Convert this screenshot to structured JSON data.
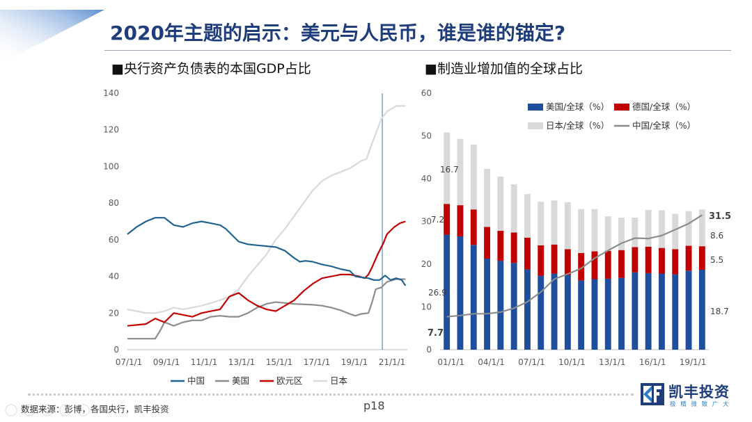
{
  "title": "2020年主题的启示：美元与人民币，谁是谁的锚定?",
  "subtitles": {
    "left": "■央行资产负债表的本国GDP占比",
    "right": "■制造业增加值的全球占比"
  },
  "footer": {
    "source": "数据来源：彭博，各国央行，凯丰投资",
    "page": "p18",
    "logo_name": "凯丰投资",
    "logo_tagline": "极 精 微 致 广 大"
  },
  "colors": {
    "china": "#1f6391",
    "us": "#8c8c8c",
    "euro": "#c00000",
    "japan": "#d9d9d9",
    "bar_us": "#1f4e9c",
    "bar_de": "#c00000",
    "bar_jp": "#d9d9d9",
    "bar_cn": "#8c8c8c",
    "vline": "#2e75b6"
  },
  "chart_data": [
    {
      "type": "line",
      "title": "央行资产负债表的本国GDP占比",
      "x_ticks": [
        "07/1/1",
        "09/1/1",
        "11/1/1",
        "13/1/1",
        "15/1/1",
        "17/1/1",
        "19/1/1",
        "21/1/1"
      ],
      "x_range": [
        2007.0,
        2022.1
      ],
      "ylim": [
        0,
        140
      ],
      "y_ticks": [
        0,
        20,
        40,
        60,
        80,
        100,
        120,
        140
      ],
      "grid": false,
      "legend_position": "bottom",
      "vertical_marker_x": 2020.75,
      "series": [
        {
          "name": "中国",
          "color_key": "china",
          "points": [
            [
              2007.0,
              63
            ],
            [
              2007.5,
              67
            ],
            [
              2008.0,
              70
            ],
            [
              2008.5,
              72
            ],
            [
              2009.0,
              72
            ],
            [
              2009.5,
              68
            ],
            [
              2010.0,
              67
            ],
            [
              2010.5,
              69
            ],
            [
              2011.0,
              70
            ],
            [
              2011.5,
              69
            ],
            [
              2012.0,
              68
            ],
            [
              2012.3,
              66
            ],
            [
              2012.6,
              63
            ],
            [
              2013.0,
              59
            ],
            [
              2013.5,
              57.5
            ],
            [
              2014.0,
              57
            ],
            [
              2014.5,
              56.5
            ],
            [
              2015.0,
              56
            ],
            [
              2015.5,
              54
            ],
            [
              2016.0,
              50
            ],
            [
              2016.3,
              48
            ],
            [
              2016.6,
              48.5
            ],
            [
              2017.0,
              48
            ],
            [
              2017.5,
              46.5
            ],
            [
              2018.0,
              45.5
            ],
            [
              2018.5,
              44
            ],
            [
              2019.0,
              43
            ],
            [
              2019.3,
              40
            ],
            [
              2019.6,
              39.5
            ],
            [
              2020.0,
              39
            ],
            [
              2020.3,
              38
            ],
            [
              2020.6,
              38
            ],
            [
              2020.9,
              40.5
            ],
            [
              2021.2,
              38
            ],
            [
              2021.5,
              39
            ],
            [
              2021.8,
              38
            ],
            [
              2022.0,
              35
            ]
          ]
        },
        {
          "name": "美国",
          "color_key": "us",
          "points": [
            [
              2007.0,
              6
            ],
            [
              2008.0,
              6
            ],
            [
              2008.5,
              6
            ],
            [
              2008.8,
              11
            ],
            [
              2009.0,
              15
            ],
            [
              2009.5,
              13
            ],
            [
              2010.0,
              15
            ],
            [
              2010.5,
              16
            ],
            [
              2011.0,
              16
            ],
            [
              2011.5,
              18
            ],
            [
              2012.0,
              18.5
            ],
            [
              2012.5,
              18
            ],
            [
              2013.0,
              18
            ],
            [
              2013.5,
              20
            ],
            [
              2014.0,
              23
            ],
            [
              2014.5,
              25
            ],
            [
              2015.0,
              26
            ],
            [
              2015.5,
              25.5
            ],
            [
              2016.0,
              25
            ],
            [
              2017.0,
              24.5
            ],
            [
              2017.5,
              24
            ],
            [
              2018.0,
              23
            ],
            [
              2018.5,
              21.5
            ],
            [
              2019.0,
              19.5
            ],
            [
              2019.3,
              18.5
            ],
            [
              2019.6,
              19.5
            ],
            [
              2020.0,
              20
            ],
            [
              2020.2,
              26
            ],
            [
              2020.4,
              33
            ],
            [
              2020.7,
              34
            ],
            [
              2021.0,
              37
            ],
            [
              2021.5,
              38.5
            ],
            [
              2022.0,
              38.5
            ]
          ]
        },
        {
          "name": "欧元区",
          "color_key": "euro",
          "points": [
            [
              2007.0,
              13
            ],
            [
              2007.5,
              13.5
            ],
            [
              2008.0,
              14
            ],
            [
              2008.5,
              17
            ],
            [
              2009.0,
              15
            ],
            [
              2009.5,
              20
            ],
            [
              2010.0,
              19
            ],
            [
              2010.5,
              18
            ],
            [
              2011.0,
              20
            ],
            [
              2011.5,
              21
            ],
            [
              2012.0,
              22
            ],
            [
              2012.5,
              29
            ],
            [
              2013.0,
              31
            ],
            [
              2013.5,
              27
            ],
            [
              2014.0,
              24
            ],
            [
              2014.5,
              22
            ],
            [
              2015.0,
              21
            ],
            [
              2015.5,
              24
            ],
            [
              2016.0,
              27
            ],
            [
              2016.5,
              32
            ],
            [
              2017.0,
              36
            ],
            [
              2017.5,
              39
            ],
            [
              2018.0,
              40
            ],
            [
              2018.5,
              41
            ],
            [
              2019.0,
              41
            ],
            [
              2019.5,
              40
            ],
            [
              2019.8,
              39
            ],
            [
              2020.0,
              41
            ],
            [
              2020.2,
              45
            ],
            [
              2020.5,
              52
            ],
            [
              2020.8,
              58
            ],
            [
              2021.0,
              63
            ],
            [
              2021.4,
              67
            ],
            [
              2021.7,
              69
            ],
            [
              2022.0,
              70
            ]
          ]
        },
        {
          "name": "日本",
          "color_key": "japan",
          "points": [
            [
              2007.0,
              22
            ],
            [
              2007.5,
              21
            ],
            [
              2008.0,
              20
            ],
            [
              2008.5,
              20
            ],
            [
              2009.0,
              21
            ],
            [
              2009.5,
              23
            ],
            [
              2010.0,
              22
            ],
            [
              2010.5,
              23
            ],
            [
              2011.0,
              24
            ],
            [
              2011.5,
              25.5
            ],
            [
              2012.0,
              27
            ],
            [
              2012.5,
              29
            ],
            [
              2013.0,
              33
            ],
            [
              2013.5,
              40
            ],
            [
              2014.0,
              46
            ],
            [
              2014.5,
              52
            ],
            [
              2015.0,
              60
            ],
            [
              2015.5,
              66
            ],
            [
              2016.0,
              73
            ],
            [
              2016.5,
              80
            ],
            [
              2017.0,
              87
            ],
            [
              2017.5,
              92
            ],
            [
              2018.0,
              95
            ],
            [
              2018.5,
              97
            ],
            [
              2019.0,
              99
            ],
            [
              2019.3,
              101
            ],
            [
              2019.6,
              103
            ],
            [
              2019.9,
              104
            ],
            [
              2020.1,
              110
            ],
            [
              2020.4,
              118
            ],
            [
              2020.7,
              126
            ],
            [
              2021.0,
              130
            ],
            [
              2021.5,
              133
            ],
            [
              2022.0,
              133
            ]
          ]
        }
      ]
    },
    {
      "type": "bar",
      "title": "制造业增加值的全球占比",
      "stacked": true,
      "categories": [
        "01/1/1",
        "02/1/1",
        "03/1/1",
        "04/1/1",
        "05/1/1",
        "06/1/1",
        "07/1/1",
        "08/1/1",
        "09/1/1",
        "10/1/1",
        "11/1/1",
        "12/1/1",
        "13/1/1",
        "14/1/1",
        "15/1/1",
        "16/1/1",
        "17/1/1",
        "18/1/1",
        "19/1/1",
        "20/1/1"
      ],
      "x_tick_labels": [
        "01/1/1",
        "04/1/1",
        "07/1/1",
        "10/1/1",
        "13/1/1",
        "16/1/1",
        "19/1/1"
      ],
      "ylim": [
        0,
        60
      ],
      "y_ticks": [
        0,
        10,
        20,
        30,
        40,
        50,
        60
      ],
      "legend_position": "top",
      "series": [
        {
          "name": "美国/全球（%）",
          "kind": "bar",
          "color_key": "bar_us",
          "values": [
            26.9,
            26.5,
            24.5,
            21.3,
            20.8,
            20.3,
            18.8,
            17.3,
            17.8,
            17.4,
            16.2,
            16.5,
            16.6,
            16.8,
            18.1,
            17.9,
            17.8,
            17.6,
            18.5,
            18.7
          ]
        },
        {
          "name": "德国/全球（%）",
          "kind": "bar",
          "color_key": "bar_de",
          "values": [
            7.2,
            7.3,
            8.3,
            7.4,
            7.0,
            7.1,
            7.4,
            7.1,
            6.8,
            6.1,
            6.4,
            6.5,
            6.5,
            6.5,
            5.9,
            6.2,
            6.0,
            5.9,
            5.8,
            5.5
          ]
        },
        {
          "name": "日本/全球（%）",
          "kind": "bar",
          "color_key": "bar_jp",
          "values": [
            16.7,
            15.5,
            15.2,
            13.6,
            12.7,
            11.3,
            10.2,
            10.2,
            10.3,
            11.0,
            10.3,
            9.9,
            8.1,
            7.6,
            6.9,
            8.6,
            8.8,
            8.3,
            8.1,
            8.6
          ]
        },
        {
          "name": "中国/全球（%）",
          "kind": "line",
          "color_key": "bar_cn",
          "values": [
            7.7,
            8.0,
            8.4,
            8.4,
            8.8,
            9.7,
            11.2,
            13.5,
            16.5,
            17.7,
            19.0,
            21.4,
            23.2,
            24.9,
            26.1,
            26.0,
            26.7,
            28.1,
            29.5,
            31.5
          ]
        }
      ],
      "data_labels": {
        "bar_top_left": "16.7",
        "bar_mid_left": "7.2",
        "bar_low_left": "26.9",
        "line_left": "7.7",
        "line_right": "31.5",
        "bar_top_right": "8.6",
        "bar_mid_right": "5.5",
        "bar_low_right": "18.7"
      }
    }
  ]
}
